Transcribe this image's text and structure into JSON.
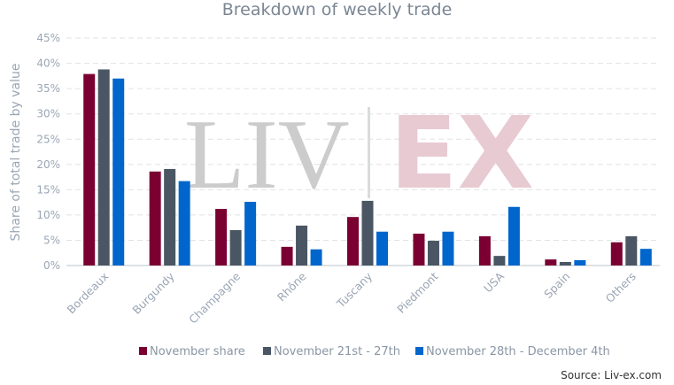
{
  "chart_data": {
    "type": "bar",
    "title": "Breakdown of weekly trade",
    "ylabel": "Share of total trade by value",
    "xlabel": "",
    "ylim": [
      0,
      45
    ],
    "yticks": [
      "0%",
      "5%",
      "10%",
      "15%",
      "20%",
      "25%",
      "30%",
      "35%",
      "40%",
      "45%"
    ],
    "grid": true,
    "legend_position": "bottom",
    "categories": [
      "Bordeaux",
      "Burgundy",
      "Champagne",
      "Rhône",
      "Tuscany",
      "Piedmont",
      "USA",
      "Spain",
      "Others"
    ],
    "series": [
      {
        "name": "November share",
        "color": "#7b0032",
        "values": [
          37.9,
          18.6,
          11.2,
          3.7,
          9.6,
          6.3,
          5.8,
          1.2,
          4.6
        ]
      },
      {
        "name": "November 21st - 27th",
        "color": "#4a5663",
        "values": [
          38.8,
          19.1,
          7.0,
          7.9,
          12.8,
          4.9,
          1.9,
          0.7,
          5.8
        ]
      },
      {
        "name": "November 28th - December 4th",
        "color": "#0066cc",
        "values": [
          37.0,
          16.7,
          12.6,
          3.2,
          6.7,
          6.7,
          11.6,
          1.05,
          3.3
        ]
      }
    ],
    "source": "Source: Liv-ex.com"
  },
  "watermark": {
    "text_left": "LIV",
    "text_right": "EX"
  }
}
